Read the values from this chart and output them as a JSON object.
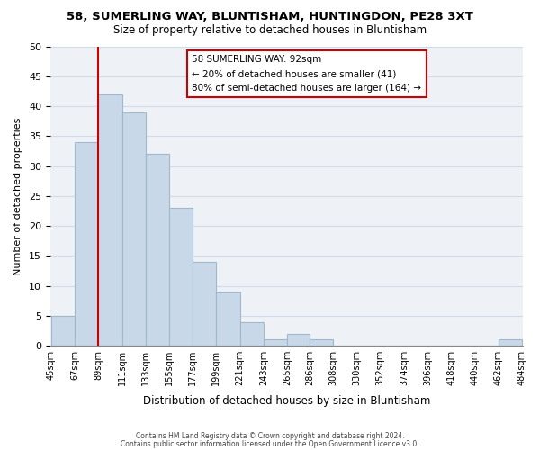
{
  "title": "58, SUMERLING WAY, BLUNTISHAM, HUNTINGDON, PE28 3XT",
  "subtitle": "Size of property relative to detached houses in Bluntisham",
  "xlabel": "Distribution of detached houses by size in Bluntisham",
  "ylabel": "Number of detached properties",
  "bar_color": "#c8d8e8",
  "bar_edge_color": "#a0b8cc",
  "bin_edges": [
    45,
    67,
    89,
    111,
    133,
    155,
    177,
    199,
    221,
    243,
    265,
    286,
    308,
    330,
    352,
    374,
    396,
    418,
    440,
    462,
    484
  ],
  "bin_labels": [
    "45sqm",
    "67sqm",
    "89sqm",
    "111sqm",
    "133sqm",
    "155sqm",
    "177sqm",
    "199sqm",
    "221sqm",
    "243sqm",
    "265sqm",
    "286sqm",
    "308sqm",
    "330sqm",
    "352sqm",
    "374sqm",
    "396sqm",
    "418sqm",
    "440sqm",
    "462sqm",
    "484sqm"
  ],
  "bar_heights": [
    5,
    34,
    42,
    39,
    32,
    23,
    14,
    9,
    4,
    1,
    2,
    1,
    0,
    0,
    0,
    0,
    0,
    0,
    0,
    1
  ],
  "ylim": [
    0,
    50
  ],
  "yticks": [
    0,
    5,
    10,
    15,
    20,
    25,
    30,
    35,
    40,
    45,
    50
  ],
  "vline_x": 89,
  "vline_color": "#cc0000",
  "annotation_title": "58 SUMERLING WAY: 92sqm",
  "annotation_line1": "← 20% of detached houses are smaller (41)",
  "annotation_line2": "80% of semi-detached houses are larger (164) →",
  "footer_line1": "Contains HM Land Registry data © Crown copyright and database right 2024.",
  "footer_line2": "Contains public sector information licensed under the Open Government Licence v3.0.",
  "grid_color": "#d0dce8",
  "background_color": "#eef2f7"
}
